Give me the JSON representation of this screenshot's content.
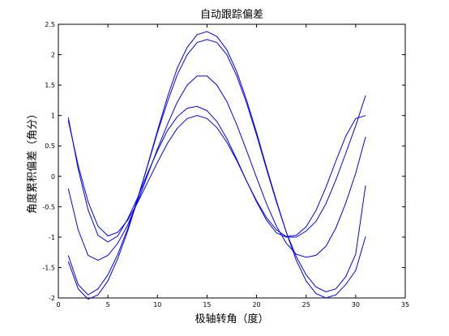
{
  "chart_data": {
    "type": "line",
    "title": "自动跟踪偏差",
    "xlabel": "极轴转角（度）",
    "ylabel": "角度累积偏差（角分）",
    "xlim": [
      0,
      35
    ],
    "ylim": [
      -2,
      2.5
    ],
    "xticks": [
      0,
      5,
      10,
      15,
      20,
      25,
      30,
      35
    ],
    "yticks": [
      -2,
      -1.5,
      -1,
      -0.5,
      0,
      0.5,
      1,
      1.5,
      2,
      2.5
    ],
    "xtick_labels": [
      "0",
      "5",
      "10",
      "15",
      "20",
      "25",
      "30",
      "35"
    ],
    "ytick_labels": [
      "-2",
      "-1.5",
      "-1",
      "-0.5",
      "0",
      "0.5",
      "1",
      "1.5",
      "2",
      "2.5"
    ],
    "grid": false,
    "line_color": "#0000ff",
    "x": [
      1,
      2,
      3,
      4,
      5,
      6,
      7,
      8,
      9,
      10,
      11,
      12,
      13,
      14,
      15,
      16,
      17,
      18,
      19,
      20,
      21,
      22,
      23,
      24,
      25,
      26,
      27,
      28,
      29,
      30,
      31
    ],
    "series": [
      {
        "values": [
          0.92,
          0.18,
          -0.42,
          -0.82,
          -0.98,
          -0.92,
          -0.72,
          -0.43,
          -0.1,
          0.23,
          0.54,
          0.79,
          0.95,
          1.0,
          0.95,
          0.8,
          0.56,
          0.26,
          -0.08,
          -0.4,
          -0.68,
          -0.88,
          -0.99,
          -0.97,
          -0.83,
          -0.56,
          -0.18,
          0.25,
          0.66,
          0.95,
          1.0
        ]
      },
      {
        "values": [
          0.97,
          0.12,
          -0.55,
          -0.97,
          -1.08,
          -0.98,
          -0.7,
          -0.35,
          0.05,
          0.42,
          0.75,
          0.98,
          1.12,
          1.15,
          1.08,
          0.9,
          0.62,
          0.28,
          -0.08,
          -0.42,
          -0.72,
          -0.93,
          -1.0,
          -1.0,
          -0.9,
          -0.74,
          -0.45,
          -0.06,
          0.38,
          0.83,
          1.33
        ]
      },
      {
        "values": [
          -0.2,
          -0.88,
          -1.3,
          -1.38,
          -1.3,
          -1.1,
          -0.8,
          -0.42,
          0.02,
          0.45,
          0.85,
          1.22,
          1.5,
          1.65,
          1.65,
          1.5,
          1.23,
          0.85,
          0.42,
          -0.02,
          -0.45,
          -0.82,
          -1.1,
          -1.28,
          -1.33,
          -1.3,
          -1.15,
          -0.85,
          -0.44,
          0.05,
          0.65
        ]
      },
      {
        "values": [
          -1.3,
          -1.78,
          -1.95,
          -1.85,
          -1.62,
          -1.28,
          -0.86,
          -0.36,
          0.17,
          0.72,
          1.22,
          1.67,
          2.0,
          2.2,
          2.25,
          2.2,
          2.0,
          1.65,
          1.2,
          0.68,
          0.12,
          -0.42,
          -0.92,
          -1.32,
          -1.62,
          -1.82,
          -1.9,
          -1.85,
          -1.65,
          -1.28,
          -0.15
        ]
      },
      {
        "values": [
          -1.4,
          -1.85,
          -2.02,
          -1.95,
          -1.72,
          -1.35,
          -0.9,
          -0.38,
          0.18,
          0.75,
          1.3,
          1.78,
          2.12,
          2.33,
          2.38,
          2.3,
          2.08,
          1.72,
          1.25,
          0.72,
          0.15,
          -0.4,
          -0.92,
          -1.38,
          -1.72,
          -1.93,
          -2.0,
          -1.95,
          -1.78,
          -1.55,
          -0.99
        ]
      }
    ]
  }
}
